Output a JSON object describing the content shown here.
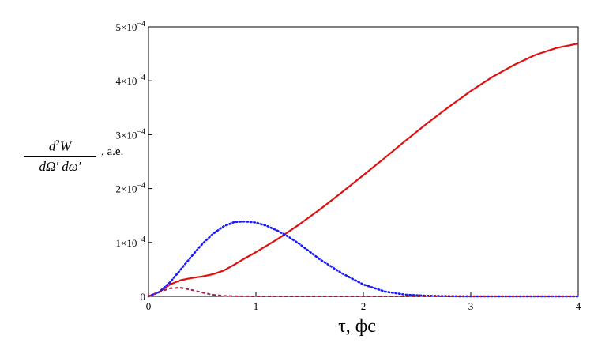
{
  "chart_data": {
    "type": "line",
    "title": "",
    "xlabel": "τ, фс",
    "ylabel": {
      "numerator": "d",
      "numerator_sup": "2",
      "numerator_var": "W",
      "denominator": "dΩ′ dω′",
      "unit": ", a.e."
    },
    "xlim": [
      0,
      4
    ],
    "ylim": [
      0,
      0.0005
    ],
    "xticks": [
      "0",
      "1",
      "2",
      "3",
      "4"
    ],
    "yticks": [
      {
        "value": 0,
        "mant": "0",
        "exp": ""
      },
      {
        "value": 0.0001,
        "mant": "1×10",
        "exp": "−4"
      },
      {
        "value": 0.0002,
        "mant": "2×10",
        "exp": "−4"
      },
      {
        "value": 0.0003,
        "mant": "3×10",
        "exp": "−4"
      },
      {
        "value": 0.0004,
        "mant": "4×10",
        "exp": "−4"
      },
      {
        "value": 0.0005,
        "mant": "5×10",
        "exp": "−4"
      }
    ],
    "grid": false,
    "series": [
      {
        "style": "solid",
        "color": "#e01010",
        "x": [
          0,
          0.1,
          0.2,
          0.3,
          0.4,
          0.5,
          0.6,
          0.7,
          0.8,
          0.9,
          1.0,
          1.2,
          1.4,
          1.6,
          1.8,
          2.0,
          2.2,
          2.4,
          2.6,
          2.8,
          3.0,
          3.2,
          3.4,
          3.6,
          3.8,
          4.0
        ],
        "y": [
          0,
          8e-06,
          2.2e-05,
          3e-05,
          3.4e-05,
          3.7e-05,
          4.1e-05,
          4.8e-05,
          5.9e-05,
          7.1e-05,
          8.2e-05,
          0.000106,
          0.000133,
          0.000162,
          0.000193,
          0.000225,
          0.000257,
          0.00029,
          0.000322,
          0.000352,
          0.000381,
          0.000407,
          0.000429,
          0.000448,
          0.000461,
          0.000469
        ]
      },
      {
        "style": "dotted",
        "color": "#1a1aff",
        "x": [
          0,
          0.1,
          0.2,
          0.3,
          0.4,
          0.5,
          0.6,
          0.7,
          0.8,
          0.9,
          1.0,
          1.1,
          1.2,
          1.3,
          1.4,
          1.5,
          1.6,
          1.8,
          2.0,
          2.2,
          2.4,
          2.6,
          2.8,
          3.0,
          3.5,
          4.0
        ],
        "y": [
          0,
          8e-06,
          2.6e-05,
          5e-05,
          7.4e-05,
          9.7e-05,
          0.000116,
          0.00013,
          0.000138,
          0.000139,
          0.000137,
          0.000131,
          0.000122,
          0.000111,
          9.8e-05,
          8.3e-05,
          6.8e-05,
          4.3e-05,
          2.2e-05,
          9e-06,
          3e-06,
          1e-06,
          3e-07,
          0,
          0,
          0
        ]
      },
      {
        "style": "dashed",
        "color": "#9a2040",
        "x": [
          0,
          0.1,
          0.2,
          0.3,
          0.4,
          0.5,
          0.6,
          0.7,
          0.8,
          1.0,
          1.5,
          2.0,
          3.0,
          4.0
        ],
        "y": [
          0,
          8e-06,
          1.5e-05,
          1.6e-05,
          1.2e-05,
          7e-06,
          3e-06,
          1e-06,
          3e-07,
          0,
          0,
          0,
          0,
          0
        ]
      }
    ]
  }
}
